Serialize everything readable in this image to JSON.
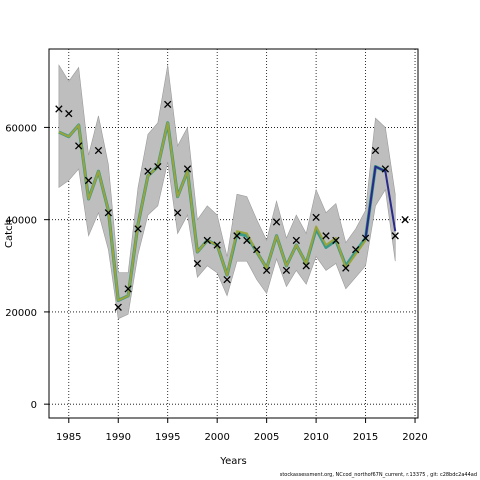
{
  "chart_data": {
    "type": "line",
    "xlabel": "Years",
    "ylabel": "Catch",
    "xlim": [
      1983,
      2020.3
    ],
    "ylim": [
      -3000,
      77000
    ],
    "x_ticks": [
      1985,
      1990,
      1995,
      2000,
      2005,
      2010,
      2015,
      2020
    ],
    "y_ticks": [
      0,
      20000,
      40000,
      60000
    ],
    "grid": true,
    "grid_style": "dotted",
    "colors": {
      "band": "#bebebe",
      "band_edge": "#9a9a9a",
      "series_a": "#9aa43a",
      "series_b": "#3a9a8a",
      "series_c": "#2a2a8a",
      "observed": "#000000"
    },
    "years": [
      1984,
      1985,
      1986,
      1987,
      1988,
      1989,
      1990,
      1991,
      1992,
      1993,
      1994,
      1995,
      1996,
      1997,
      1998,
      1999,
      2000,
      2001,
      2002,
      2003,
      2004,
      2005,
      2006,
      2007,
      2008,
      2009,
      2010,
      2011,
      2012,
      2013,
      2014,
      2015,
      2016,
      2017,
      2018,
      2019
    ],
    "band_years": [
      1984,
      1985,
      1986,
      1987,
      1988,
      1989,
      1990,
      1991,
      1992,
      1993,
      1994,
      1995,
      1996,
      1997,
      1998,
      1999,
      2000,
      2001,
      2002,
      2003,
      2004,
      2005,
      2006,
      2007,
      2008,
      2009,
      2010,
      2011,
      2012,
      2013,
      2014,
      2015,
      2016,
      2017,
      2018
    ],
    "band_upper": [
      73500,
      70000,
      73000,
      54000,
      62500,
      52000,
      28500,
      28500,
      47000,
      58500,
      61000,
      73500,
      56000,
      60000,
      40000,
      43000,
      41000,
      32000,
      45500,
      45000,
      40000,
      35500,
      44000,
      36000,
      41000,
      37000,
      46500,
      41500,
      43500,
      35000,
      38000,
      42000,
      62000,
      60000,
      45500
    ],
    "band_lower": [
      47000,
      48500,
      51000,
      36500,
      41500,
      33500,
      18500,
      19500,
      32500,
      41000,
      43000,
      52500,
      37000,
      41000,
      27500,
      30000,
      28500,
      23500,
      31000,
      31000,
      27000,
      24000,
      31500,
      25500,
      29000,
      26000,
      32000,
      29000,
      30500,
      25000,
      27500,
      30000,
      43000,
      46500,
      31000
    ],
    "series": [
      {
        "years": [
          1984,
          1985,
          1986,
          1987,
          1988,
          1989,
          1990,
          1991,
          1992,
          1993,
          1994,
          1995,
          1996,
          1997,
          1998,
          1999,
          2000,
          2001,
          2002,
          2003,
          2004,
          2005,
          2006,
          2007,
          2008,
          2009,
          2010,
          2011,
          2012,
          2013,
          2014,
          2015
        ],
        "values": [
          59000,
          58000,
          60500,
          44500,
          50500,
          42000,
          22500,
          23500,
          39000,
          49500,
          51500,
          61000,
          45000,
          50500,
          33000,
          35500,
          34500,
          28000,
          37500,
          37000,
          33000,
          29500,
          36500,
          30000,
          34500,
          30500,
          38500,
          34500,
          36000,
          29500,
          32500,
          35500
        ]
      },
      {
        "years": [
          1984,
          1985,
          1986,
          1987,
          1988,
          1989,
          1990,
          1991,
          1992,
          1993,
          1994,
          1995,
          1996,
          1997,
          1998,
          1999,
          2000,
          2001,
          2002,
          2003,
          2004,
          2005,
          2006,
          2007,
          2008,
          2009,
          2010,
          2011,
          2012,
          2013,
          2014,
          2015,
          2016,
          2017
        ],
        "values": [
          59000,
          58000,
          60500,
          44500,
          50500,
          42000,
          22500,
          23500,
          39000,
          49500,
          51500,
          61000,
          45000,
          50500,
          33000,
          35500,
          34500,
          28000,
          37000,
          36500,
          33000,
          29500,
          36500,
          30000,
          34500,
          30500,
          38000,
          34000,
          35500,
          30000,
          33000,
          36000,
          51500,
          50500
        ]
      },
      {
        "years": [
          2015,
          2016,
          2017,
          2018
        ],
        "values": [
          36000,
          51500,
          50500,
          37500
        ]
      }
    ],
    "observed": {
      "years": [
        1984,
        1985,
        1986,
        1987,
        1988,
        1989,
        1990,
        1991,
        1992,
        1993,
        1994,
        1995,
        1996,
        1997,
        1998,
        1999,
        2000,
        2001,
        2002,
        2003,
        2004,
        2005,
        2006,
        2007,
        2008,
        2009,
        2010,
        2011,
        2012,
        2013,
        2014,
        2015,
        2016,
        2017,
        2018,
        2019
      ],
      "values": [
        64000,
        63000,
        56000,
        48500,
        55000,
        41500,
        21000,
        25000,
        38000,
        50500,
        51500,
        65000,
        41500,
        51000,
        30500,
        35500,
        34500,
        27000,
        36500,
        35500,
        33500,
        29000,
        39500,
        29000,
        35500,
        30000,
        40500,
        36500,
        35500,
        29500,
        33500,
        36000,
        55000,
        51000,
        36500,
        40000
      ]
    }
  },
  "footer": {
    "text": "stockassessment.org,  NCcod_northof67N_current,  r.13375 ,  git: c28bdc2a44ad"
  }
}
